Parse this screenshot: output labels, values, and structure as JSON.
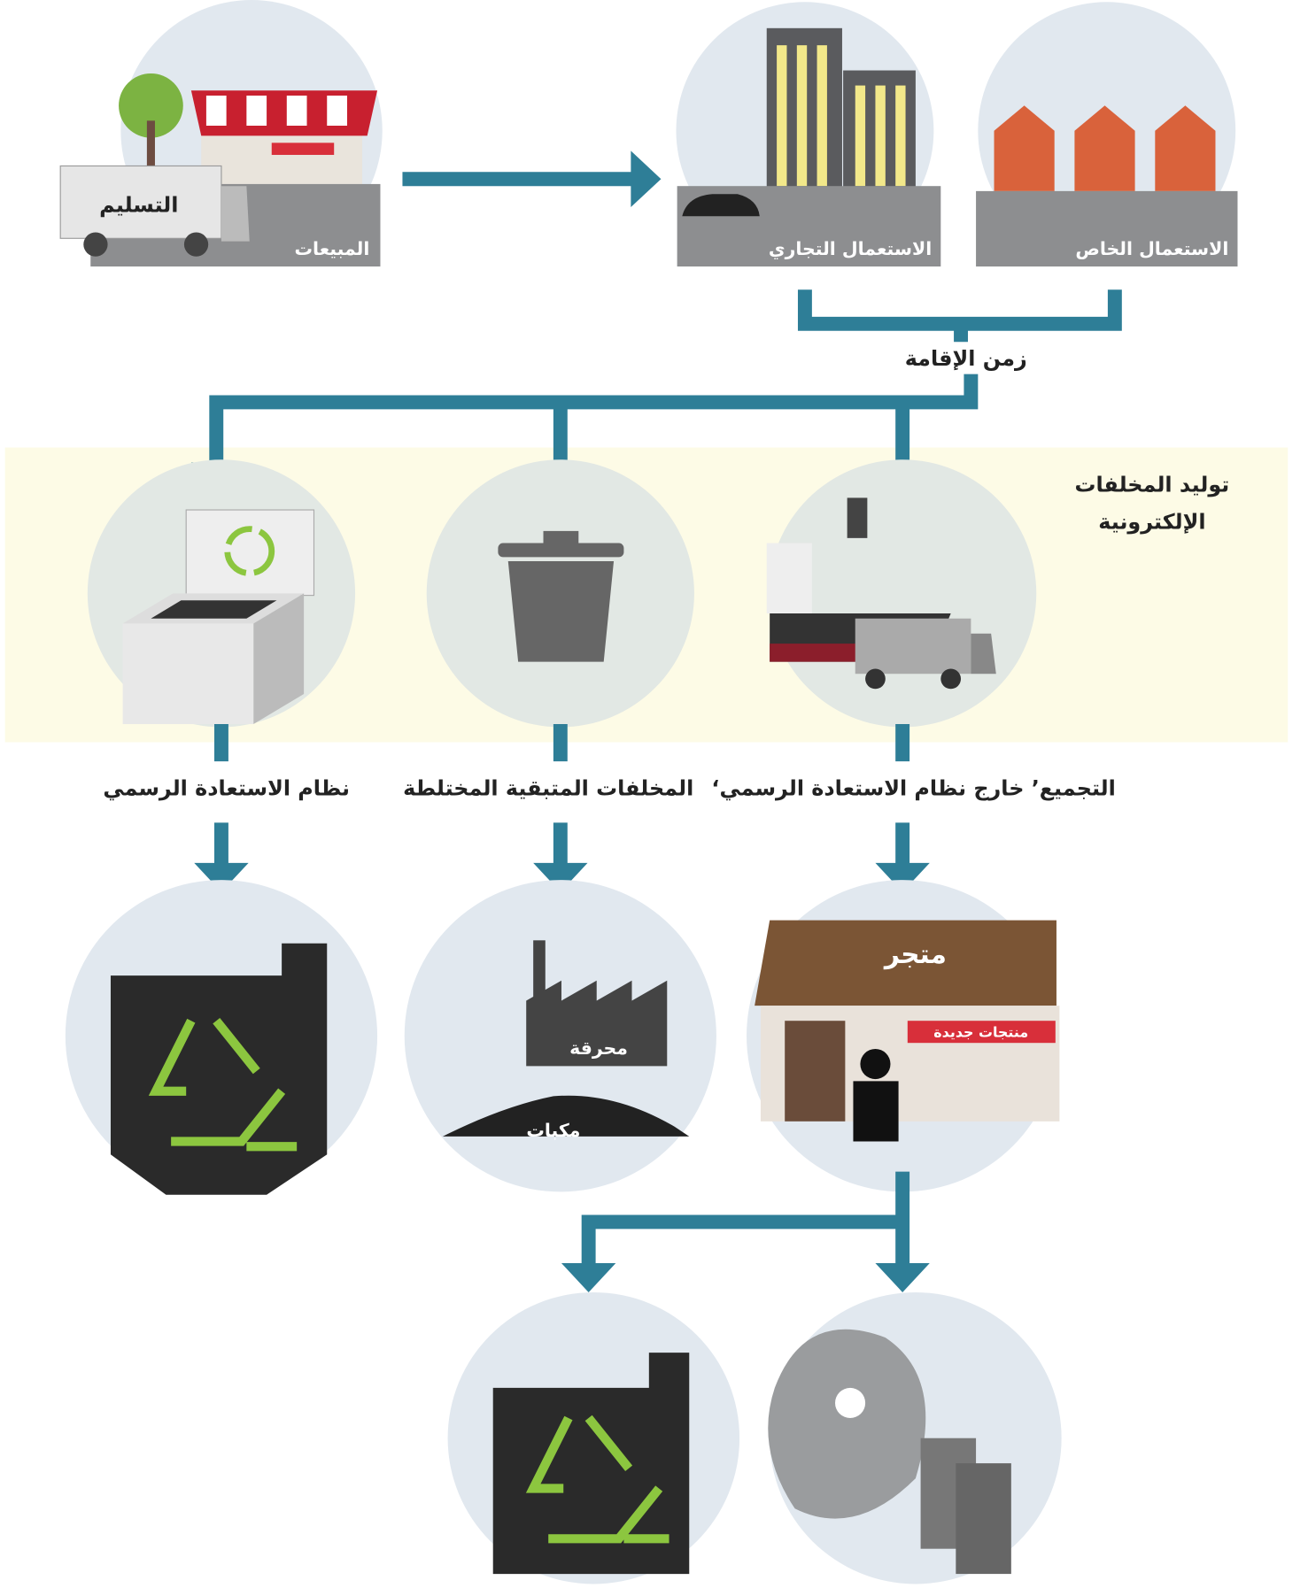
{
  "stages": {
    "sales": "المبيعات",
    "delivery": "التسليم",
    "commercial_use": "الاستعمال التجاري",
    "private_use": "الاستعمال الخاص",
    "residence_time": "زمن الإقامة"
  },
  "generation": {
    "lines": [
      "توليد المخلفات",
      "الإلكترونية"
    ]
  },
  "routes": {
    "formal": "نظام الاستعادة الرسمي",
    "residual": "المخلفات المتبقية المختلطة",
    "informal": "‘التجميع’ خارج نظام الاستعادة الرسمي"
  },
  "outcomes": {
    "shop": "متجر",
    "new_products": "منتجات جديدة",
    "incinerator": "محرقة",
    "landfill": "مكبات"
  }
}
